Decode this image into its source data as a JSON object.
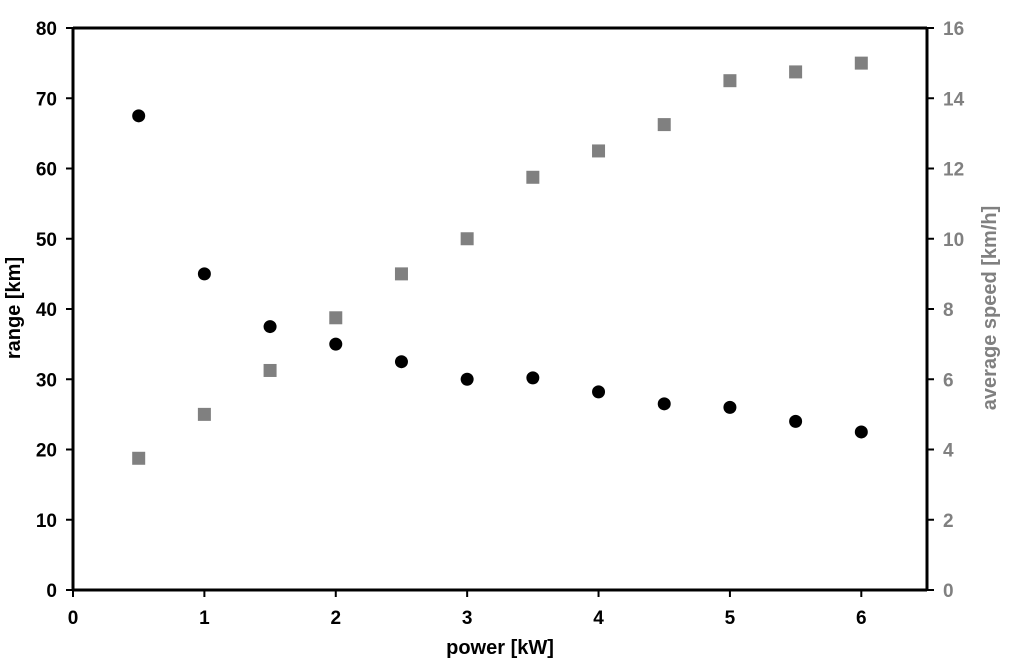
{
  "chart_data": {
    "type": "scatter",
    "xlabel": "power [kW]",
    "ylabel": "range [km]",
    "y2label": "average speed [km/h]",
    "xlim": [
      0,
      6.5
    ],
    "ylim": [
      0,
      80
    ],
    "y2lim": [
      0,
      16
    ],
    "xticks": [
      0,
      1,
      2,
      3,
      4,
      5,
      6
    ],
    "yticks": [
      0,
      10,
      20,
      30,
      40,
      50,
      60,
      70,
      80
    ],
    "y2ticks": [
      0,
      2,
      4,
      6,
      8,
      10,
      12,
      14,
      16
    ],
    "grid": false,
    "colors": {
      "range": "#000000",
      "speed": "#808080",
      "axis": "#000000"
    },
    "series": [
      {
        "axis": "left",
        "marker": "circle",
        "x": [
          0.5,
          1.0,
          1.5,
          2.0,
          2.5,
          3.0,
          3.5,
          4.0,
          4.5,
          5.0,
          5.5,
          6.0
        ],
        "y": [
          67.5,
          45.0,
          37.5,
          35.0,
          32.5,
          30.0,
          30.2,
          28.2,
          26.5,
          26.0,
          24.0,
          22.5
        ]
      },
      {
        "axis": "right",
        "marker": "square",
        "x": [
          0.5,
          1.0,
          1.5,
          2.0,
          2.5,
          3.0,
          3.5,
          4.0,
          4.5,
          5.0,
          5.5,
          6.0
        ],
        "y": [
          3.75,
          5.0,
          6.25,
          7.75,
          9.0,
          10.0,
          11.75,
          12.5,
          13.25,
          14.5,
          14.75,
          15.0
        ]
      }
    ]
  }
}
